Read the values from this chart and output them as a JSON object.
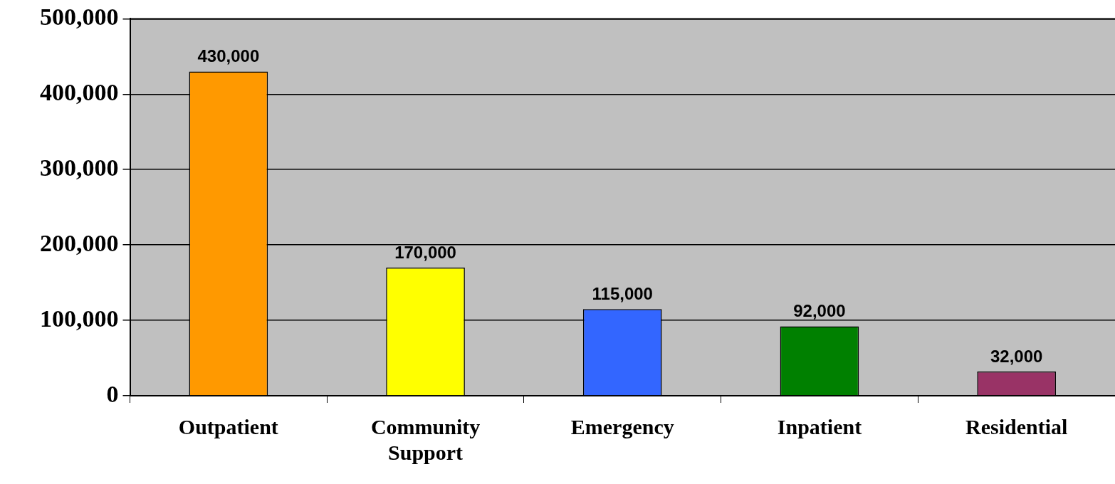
{
  "chart_data": {
    "type": "bar",
    "categories": [
      "Outpatient",
      "Community Support",
      "Emergency",
      "Inpatient",
      "Residential"
    ],
    "values": [
      430000,
      170000,
      115000,
      92000,
      32000
    ],
    "value_labels": [
      "430,000",
      "170,000",
      "115,000",
      "92,000",
      "32,000"
    ],
    "colors": [
      "#ff9900",
      "#ffff00",
      "#3366ff",
      "#008000",
      "#993366"
    ],
    "ylim": [
      0,
      500000
    ],
    "yticks": [
      0,
      {
        "value": 100000,
        "label": "100,000"
      },
      {
        "value": 200000,
        "label": "200,000"
      },
      {
        "value": 300000,
        "label": "300,000"
      },
      {
        "value": 400000,
        "label": "400,000"
      },
      {
        "value": 500000,
        "label": "500,000"
      }
    ],
    "grid": "y",
    "legend": false
  }
}
